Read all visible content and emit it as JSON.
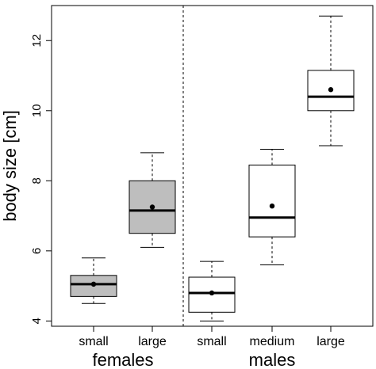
{
  "chart_data": {
    "type": "boxplot",
    "ylabel": "body size [cm]",
    "ylim": [
      3.85,
      13.0
    ],
    "yticks": [
      4,
      6,
      8,
      10,
      12
    ],
    "grid": false,
    "groups": [
      {
        "label": "females",
        "categories": [
          "small",
          "large"
        ]
      },
      {
        "label": "males",
        "categories": [
          "small",
          "medium",
          "large"
        ]
      }
    ],
    "boxes": [
      {
        "category": "small",
        "group": "females",
        "fill": "#bebebe",
        "whisker_low": 4.5,
        "q1": 4.7,
        "median": 5.05,
        "q3": 5.3,
        "whisker_high": 5.8,
        "mean": 5.05
      },
      {
        "category": "large",
        "group": "females",
        "fill": "#bebebe",
        "whisker_low": 6.1,
        "q1": 6.5,
        "median": 7.15,
        "q3": 8.0,
        "whisker_high": 8.8,
        "mean": 7.25
      },
      {
        "category": "small",
        "group": "males",
        "fill": "#ffffff",
        "whisker_low": 4.0,
        "q1": 4.25,
        "median": 4.8,
        "q3": 5.25,
        "whisker_high": 5.7,
        "mean": 4.8
      },
      {
        "category": "medium",
        "group": "males",
        "fill": "#ffffff",
        "whisker_low": 5.6,
        "q1": 6.4,
        "median": 6.95,
        "q3": 8.45,
        "whisker_high": 8.9,
        "mean": 7.28
      },
      {
        "category": "large",
        "group": "males",
        "fill": "#ffffff",
        "whisker_low": 9.0,
        "q1": 10.0,
        "median": 10.4,
        "q3": 11.15,
        "whisker_high": 12.7,
        "mean": 10.6
      }
    ]
  }
}
